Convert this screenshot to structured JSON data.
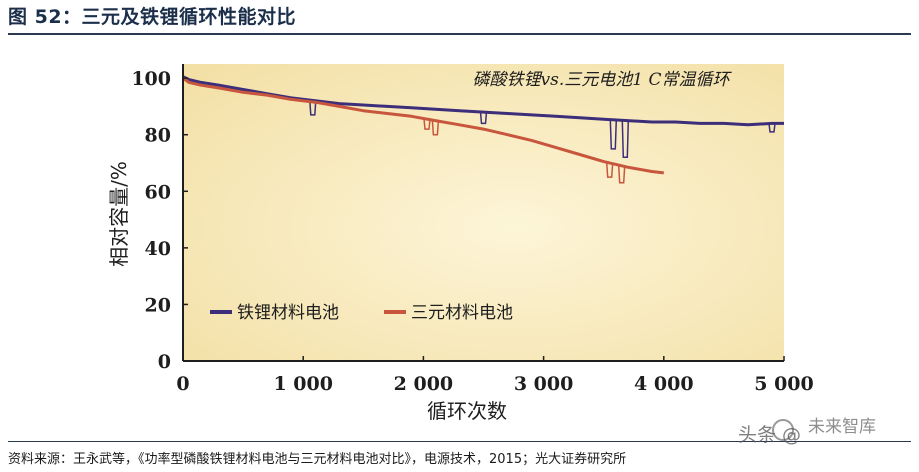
{
  "figure_title": "图 52：三元及铁锂循环性能对比",
  "source": "资料来源：王永武等，《功率型磷酸铁锂材料电池与三元材料电池对比》，电源技术，2015；光大证券研究所",
  "watermark": {
    "text1": "头条 @",
    "text2": "未来智库"
  },
  "colors": {
    "lfp": "#3c2e7a",
    "ncm": "#c8563c",
    "plot_bg": "#fbf0c8",
    "axis": "#1e1e1e",
    "tick_text": "#1e1e1e"
  },
  "chart_data": {
    "type": "line",
    "title": "",
    "annotation": "磷酸铁锂vs.三元电池1 C常温循环",
    "xlabel": "循环次数",
    "ylabel": "相对容量/%",
    "xlim": [
      0,
      5000
    ],
    "ylim": [
      0,
      105
    ],
    "xticks": [
      0,
      1000,
      2000,
      3000,
      4000,
      5000
    ],
    "xtick_labels": [
      "0",
      "1 000",
      "2 000",
      "3 000",
      "4 000",
      "5 000"
    ],
    "yticks": [
      0,
      20,
      40,
      60,
      80,
      100
    ],
    "ytick_labels": [
      "0",
      "20",
      "40",
      "60",
      "80",
      "100"
    ],
    "grid": false,
    "legend_position": "lower-left",
    "series": [
      {
        "name": "铁锂材料电池",
        "color_key": "lfp",
        "points": [
          [
            0,
            100.5
          ],
          [
            50,
            99.5
          ],
          [
            150,
            98.5
          ],
          [
            300,
            97.5
          ],
          [
            500,
            96
          ],
          [
            700,
            94.5
          ],
          [
            900,
            93
          ],
          [
            1100,
            92
          ],
          [
            1300,
            91
          ],
          [
            1500,
            90.5
          ],
          [
            1700,
            90
          ],
          [
            1900,
            89.5
          ],
          [
            2100,
            89
          ],
          [
            2300,
            88.5
          ],
          [
            2500,
            88
          ],
          [
            2700,
            87.5
          ],
          [
            2900,
            87
          ],
          [
            3100,
            86.5
          ],
          [
            3300,
            86
          ],
          [
            3500,
            85.5
          ],
          [
            3700,
            85
          ],
          [
            3900,
            84.5
          ],
          [
            4100,
            84.5
          ],
          [
            4300,
            84
          ],
          [
            4500,
            84
          ],
          [
            4700,
            83.5
          ],
          [
            4900,
            84
          ],
          [
            5000,
            84
          ]
        ],
        "dips": [
          [
            1080,
            87
          ],
          [
            2500,
            84
          ],
          [
            3580,
            75
          ],
          [
            3680,
            72
          ],
          [
            4900,
            81
          ]
        ]
      },
      {
        "name": "三元材料电池",
        "color_key": "ncm",
        "points": [
          [
            0,
            100
          ],
          [
            50,
            98.5
          ],
          [
            150,
            97.5
          ],
          [
            300,
            96.5
          ],
          [
            500,
            95
          ],
          [
            700,
            94
          ],
          [
            900,
            92.5
          ],
          [
            1100,
            91.5
          ],
          [
            1300,
            90
          ],
          [
            1500,
            88.5
          ],
          [
            1700,
            87.5
          ],
          [
            1900,
            86.5
          ],
          [
            2100,
            85
          ],
          [
            2300,
            83.5
          ],
          [
            2500,
            82
          ],
          [
            2700,
            80
          ],
          [
            2900,
            78
          ],
          [
            3100,
            75.5
          ],
          [
            3300,
            73
          ],
          [
            3500,
            70.5
          ],
          [
            3700,
            68.5
          ],
          [
            3900,
            67
          ],
          [
            4000,
            66.5
          ]
        ],
        "dips": [
          [
            2030,
            82
          ],
          [
            2100,
            80
          ],
          [
            3550,
            65
          ],
          [
            3650,
            63
          ]
        ]
      }
    ]
  }
}
